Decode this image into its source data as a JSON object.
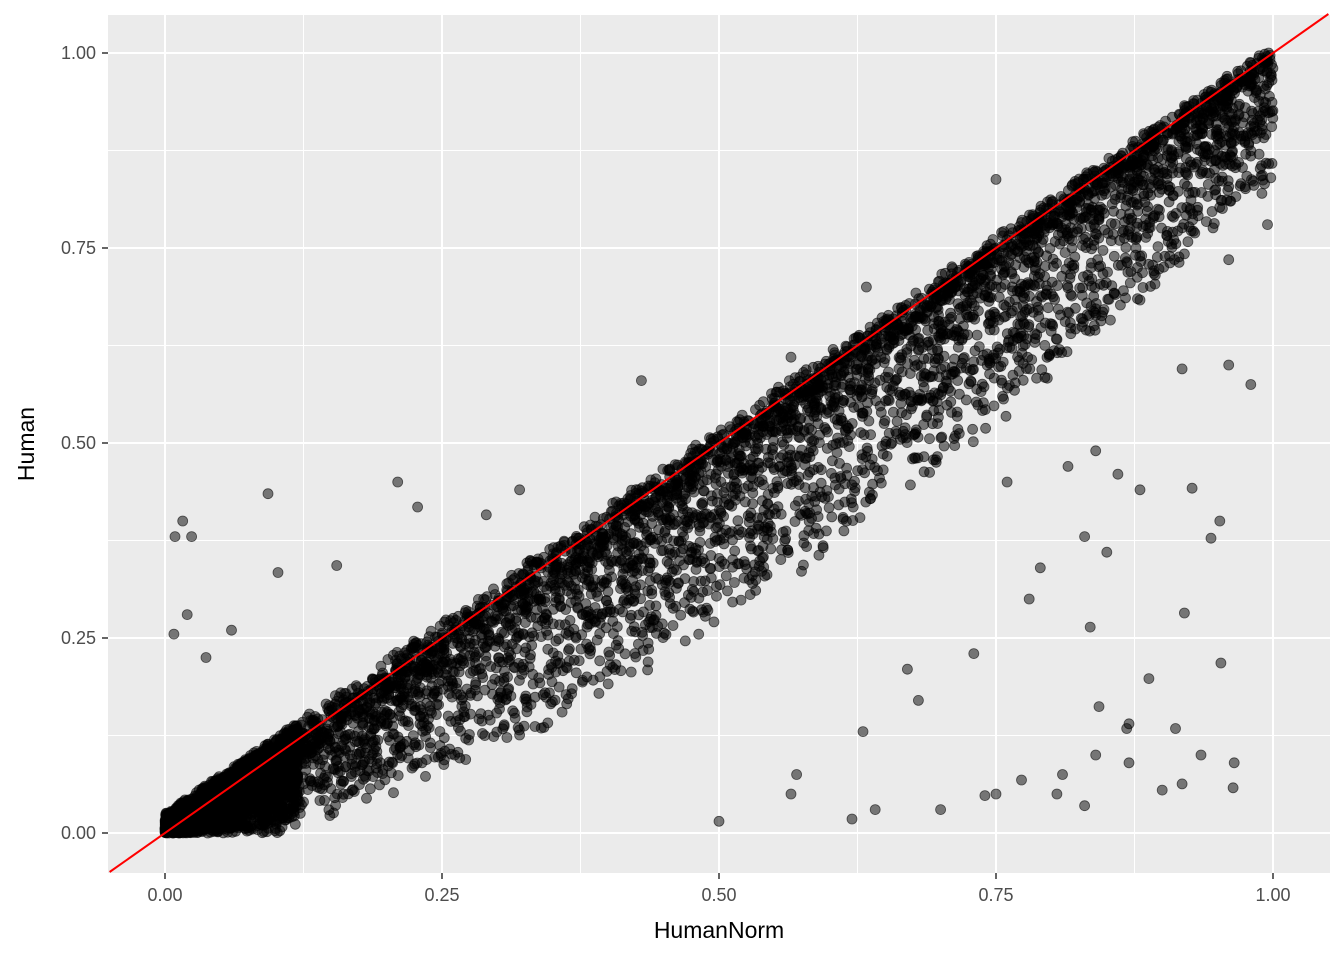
{
  "chart_data": {
    "type": "scatter",
    "xlabel": "HumanNorm",
    "ylabel": "Human",
    "xlim": [
      -0.05,
      1.05
    ],
    "ylim": [
      -0.05,
      1.05
    ],
    "x_ticks": [
      0.0,
      0.25,
      0.5,
      0.75,
      1.0
    ],
    "y_ticks": [
      0.0,
      0.25,
      0.5,
      0.75,
      1.0
    ],
    "x_tick_labels": [
      "0.00",
      "0.25",
      "0.50",
      "0.75",
      "1.00"
    ],
    "y_tick_labels": [
      "0.00",
      "0.25",
      "0.50",
      "0.75",
      "1.00"
    ],
    "grid": true,
    "panel_background": "#ebebeb",
    "grid_color": "#ffffff",
    "point_color": "#000000",
    "point_alpha": 0.5,
    "reference_line": {
      "intercept": 0,
      "slope": 1,
      "color": "#ff0000"
    },
    "series": [
      {
        "points": [
          [
            0.009,
            0.38
          ],
          [
            0.016,
            0.4
          ],
          [
            0.024,
            0.38
          ],
          [
            0.093,
            0.435
          ],
          [
            0.21,
            0.45
          ],
          [
            0.228,
            0.418
          ],
          [
            0.102,
            0.334
          ],
          [
            0.155,
            0.343
          ],
          [
            0.02,
            0.28
          ],
          [
            0.008,
            0.255
          ],
          [
            0.06,
            0.26
          ],
          [
            0.037,
            0.225
          ],
          [
            0.29,
            0.408
          ],
          [
            0.32,
            0.44
          ],
          [
            0.43,
            0.58
          ],
          [
            0.75,
            0.838
          ],
          [
            0.633,
            0.7
          ],
          [
            0.603,
            0.62
          ],
          [
            0.565,
            0.61
          ],
          [
            0.98,
            0.575
          ],
          [
            0.96,
            0.6
          ],
          [
            0.918,
            0.595
          ],
          [
            0.92,
            0.282
          ],
          [
            0.952,
            0.4
          ],
          [
            0.927,
            0.442
          ],
          [
            0.944,
            0.378
          ],
          [
            0.88,
            0.44
          ],
          [
            0.888,
            0.198
          ],
          [
            0.835,
            0.264
          ],
          [
            0.843,
            0.162
          ],
          [
            0.868,
            0.134
          ],
          [
            0.912,
            0.134
          ],
          [
            0.918,
            0.063
          ],
          [
            0.935,
            0.1
          ],
          [
            0.9,
            0.055
          ],
          [
            0.953,
            0.218
          ],
          [
            0.965,
            0.09
          ],
          [
            0.964,
            0.058
          ],
          [
            0.805,
            0.05
          ],
          [
            0.773,
            0.068
          ],
          [
            0.74,
            0.048
          ],
          [
            0.7,
            0.03
          ],
          [
            0.641,
            0.03
          ],
          [
            0.62,
            0.018
          ],
          [
            0.5,
            0.015
          ],
          [
            0.565,
            0.05
          ],
          [
            0.57,
            0.075
          ],
          [
            0.63,
            0.13
          ],
          [
            0.67,
            0.21
          ],
          [
            0.78,
            0.3
          ],
          [
            0.79,
            0.34
          ],
          [
            0.83,
            0.38
          ],
          [
            0.85,
            0.36
          ],
          [
            0.86,
            0.46
          ],
          [
            0.99,
            0.82
          ],
          [
            0.998,
            0.84
          ],
          [
            0.995,
            0.78
          ],
          [
            0.975,
            0.93
          ],
          [
            0.96,
            0.735
          ],
          [
            0.87,
            0.14
          ],
          [
            0.81,
            0.075
          ],
          [
            0.68,
            0.17
          ],
          [
            0.73,
            0.23
          ],
          [
            0.75,
            0.05
          ],
          [
            0.83,
            0.035
          ],
          [
            0.84,
            0.1
          ],
          [
            0.87,
            0.09
          ],
          [
            0.76,
            0.45
          ],
          [
            0.815,
            0.47
          ],
          [
            0.84,
            0.49
          ]
        ]
      }
    ]
  }
}
